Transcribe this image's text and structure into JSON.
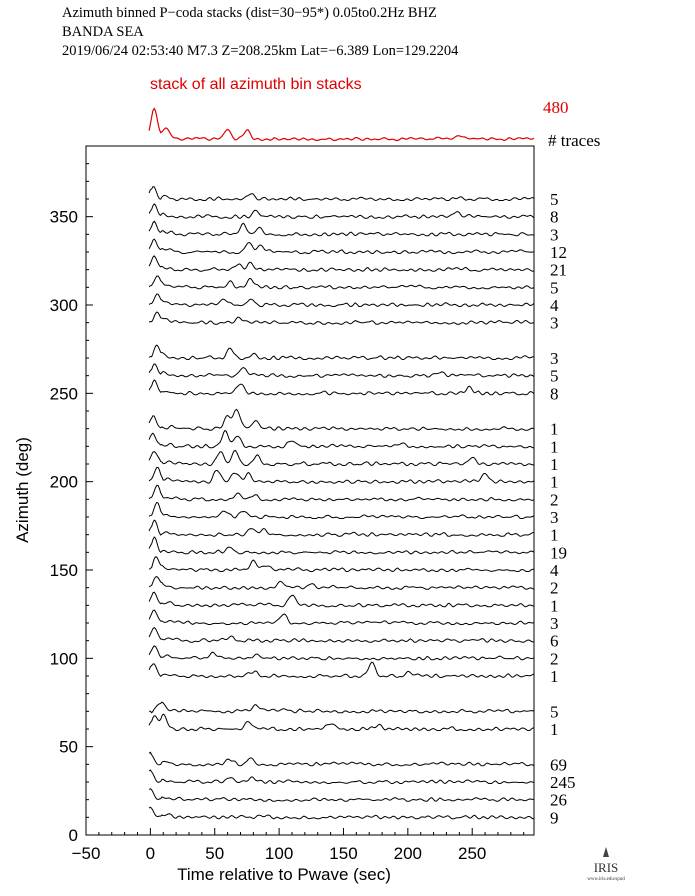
{
  "header": {
    "line1": "Azimuth binned P−coda stacks (dist=30−95*)  0.05to0.2Hz  BHZ",
    "line2": "BANDA SEA",
    "line3": "2019/06/24  02:53:40  M7.3  Z=208.25km Lat=−6.389 Lon=129.2204"
  },
  "stack": {
    "label": "stack of all azimuth bin stacks",
    "count": "480",
    "color": "#e00000"
  },
  "traces_header": "# traces",
  "logo": {
    "text": "IRIS",
    "subtext": "www.iris.edu/spud"
  },
  "chart_data": {
    "type": "line",
    "xlabel": "Time relative to Pwave (sec)",
    "ylabel": "Azimuth (deg)",
    "xlim": [
      -50,
      298
    ],
    "ylim": [
      0,
      390
    ],
    "xticks": [
      -50,
      0,
      50,
      100,
      150,
      200,
      250
    ],
    "yticks": [
      0,
      50,
      100,
      150,
      200,
      250,
      300,
      350
    ],
    "grid": false,
    "traces": [
      {
        "azimuth": 10,
        "count": "9",
        "peaks": [
          [
            0,
            10
          ]
        ]
      },
      {
        "azimuth": 20,
        "count": "26",
        "peaks": [
          [
            0,
            11
          ]
        ]
      },
      {
        "azimuth": 30,
        "count": "245",
        "peaks": [
          [
            0,
            12
          ],
          [
            62,
            4
          ],
          [
            78,
            4
          ]
        ]
      },
      {
        "azimuth": 40,
        "count": "69",
        "peaks": [
          [
            0,
            12
          ],
          [
            62,
            5
          ],
          [
            78,
            7
          ]
        ]
      },
      {
        "azimuth": 60,
        "count": "1",
        "peaks": [
          [
            3,
            14
          ],
          [
            10,
            12
          ],
          [
            76,
            9
          ],
          [
            140,
            5
          ],
          [
            178,
            4
          ]
        ]
      },
      {
        "azimuth": 70,
        "count": "5",
        "peaks": [
          [
            8,
            9
          ],
          [
            82,
            6
          ],
          [
            105,
            4
          ]
        ]
      },
      {
        "azimuth": 90,
        "count": "1",
        "peaks": [
          [
            2,
            13
          ],
          [
            80,
            5
          ],
          [
            172,
            13
          ],
          [
            200,
            4
          ]
        ]
      },
      {
        "azimuth": 100,
        "count": "2",
        "peaks": [
          [
            3,
            13
          ],
          [
            48,
            5
          ],
          [
            82,
            4
          ]
        ]
      },
      {
        "azimuth": 110,
        "count": "6",
        "peaks": [
          [
            3,
            14
          ],
          [
            64,
            4
          ]
        ]
      },
      {
        "azimuth": 120,
        "count": "3",
        "peaks": [
          [
            3,
            14
          ],
          [
            103,
            10
          ]
        ]
      },
      {
        "azimuth": 130,
        "count": "1",
        "peaks": [
          [
            3,
            14
          ],
          [
            110,
            12
          ]
        ]
      },
      {
        "azimuth": 140,
        "count": "2",
        "peaks": [
          [
            5,
            13
          ],
          [
            102,
            6
          ],
          [
            125,
            5
          ]
        ]
      },
      {
        "azimuth": 150,
        "count": "4",
        "peaks": [
          [
            5,
            13
          ],
          [
            80,
            8
          ],
          [
            90,
            5
          ]
        ]
      },
      {
        "azimuth": 160,
        "count": "19",
        "peaks": [
          [
            3,
            14
          ],
          [
            62,
            4
          ]
        ]
      },
      {
        "azimuth": 170,
        "count": "1",
        "peaks": [
          [
            3,
            14
          ],
          [
            78,
            7
          ],
          [
            88,
            5
          ]
        ]
      },
      {
        "azimuth": 180,
        "count": "3",
        "peaks": [
          [
            5,
            13
          ],
          [
            58,
            6
          ],
          [
            72,
            5
          ]
        ]
      },
      {
        "azimuth": 190,
        "count": "2",
        "peaks": [
          [
            5,
            13
          ],
          [
            68,
            6
          ],
          [
            80,
            5
          ]
        ]
      },
      {
        "azimuth": 200,
        "count": "1",
        "peaks": [
          [
            5,
            14
          ],
          [
            52,
            12
          ],
          [
            66,
            10
          ],
          [
            76,
            8
          ],
          [
            260,
            8
          ]
        ]
      },
      {
        "azimuth": 210,
        "count": "1",
        "peaks": [
          [
            3,
            14
          ],
          [
            54,
            13
          ],
          [
            66,
            14
          ],
          [
            83,
            8
          ],
          [
            250,
            6
          ]
        ]
      },
      {
        "azimuth": 220,
        "count": "1",
        "peaks": [
          [
            2,
            14
          ],
          [
            58,
            15
          ],
          [
            68,
            10
          ],
          [
            110,
            5
          ],
          [
            195,
            4
          ]
        ]
      },
      {
        "azimuth": 230,
        "count": "1",
        "peaks": [
          [
            2,
            12
          ],
          [
            60,
            14
          ],
          [
            67,
            19
          ],
          [
            82,
            8
          ]
        ]
      },
      {
        "azimuth": 250,
        "count": "8",
        "peaks": [
          [
            3,
            12
          ],
          [
            70,
            10
          ],
          [
            248,
            7
          ]
        ]
      },
      {
        "azimuth": 260,
        "count": "5",
        "peaks": [
          [
            3,
            11
          ],
          [
            72,
            8
          ],
          [
            225,
            4
          ]
        ]
      },
      {
        "azimuth": 270,
        "count": "3",
        "peaks": [
          [
            5,
            12
          ],
          [
            62,
            9
          ],
          [
            80,
            5
          ]
        ]
      },
      {
        "azimuth": 290,
        "count": "3",
        "peaks": [
          [
            5,
            10
          ],
          [
            68,
            5
          ]
        ]
      },
      {
        "azimuth": 300,
        "count": "4",
        "peaks": [
          [
            5,
            11
          ],
          [
            58,
            6
          ],
          [
            78,
            6
          ]
        ]
      },
      {
        "azimuth": 310,
        "count": "5",
        "peaks": [
          [
            5,
            12
          ],
          [
            62,
            7
          ],
          [
            78,
            9
          ]
        ]
      },
      {
        "azimuth": 320,
        "count": "21",
        "peaks": [
          [
            3,
            13
          ],
          [
            68,
            5
          ],
          [
            78,
            6
          ]
        ]
      },
      {
        "azimuth": 330,
        "count": "12",
        "peaks": [
          [
            3,
            12
          ],
          [
            76,
            10
          ],
          [
            86,
            7
          ]
        ]
      },
      {
        "azimuth": 340,
        "count": "3",
        "peaks": [
          [
            3,
            12
          ],
          [
            72,
            9
          ],
          [
            84,
            7
          ]
        ]
      },
      {
        "azimuth": 350,
        "count": "8",
        "peaks": [
          [
            3,
            12
          ],
          [
            82,
            6
          ],
          [
            238,
            5
          ]
        ]
      },
      {
        "azimuth": 360,
        "count": "5",
        "peaks": [
          [
            2,
            13
          ],
          [
            78,
            5
          ]
        ]
      }
    ],
    "summary_trace": {
      "peaks": [
        [
          3,
          32
        ],
        [
          12,
          10
        ],
        [
          60,
          10
        ],
        [
          75,
          9
        ],
        [
          240,
          4
        ]
      ]
    }
  }
}
